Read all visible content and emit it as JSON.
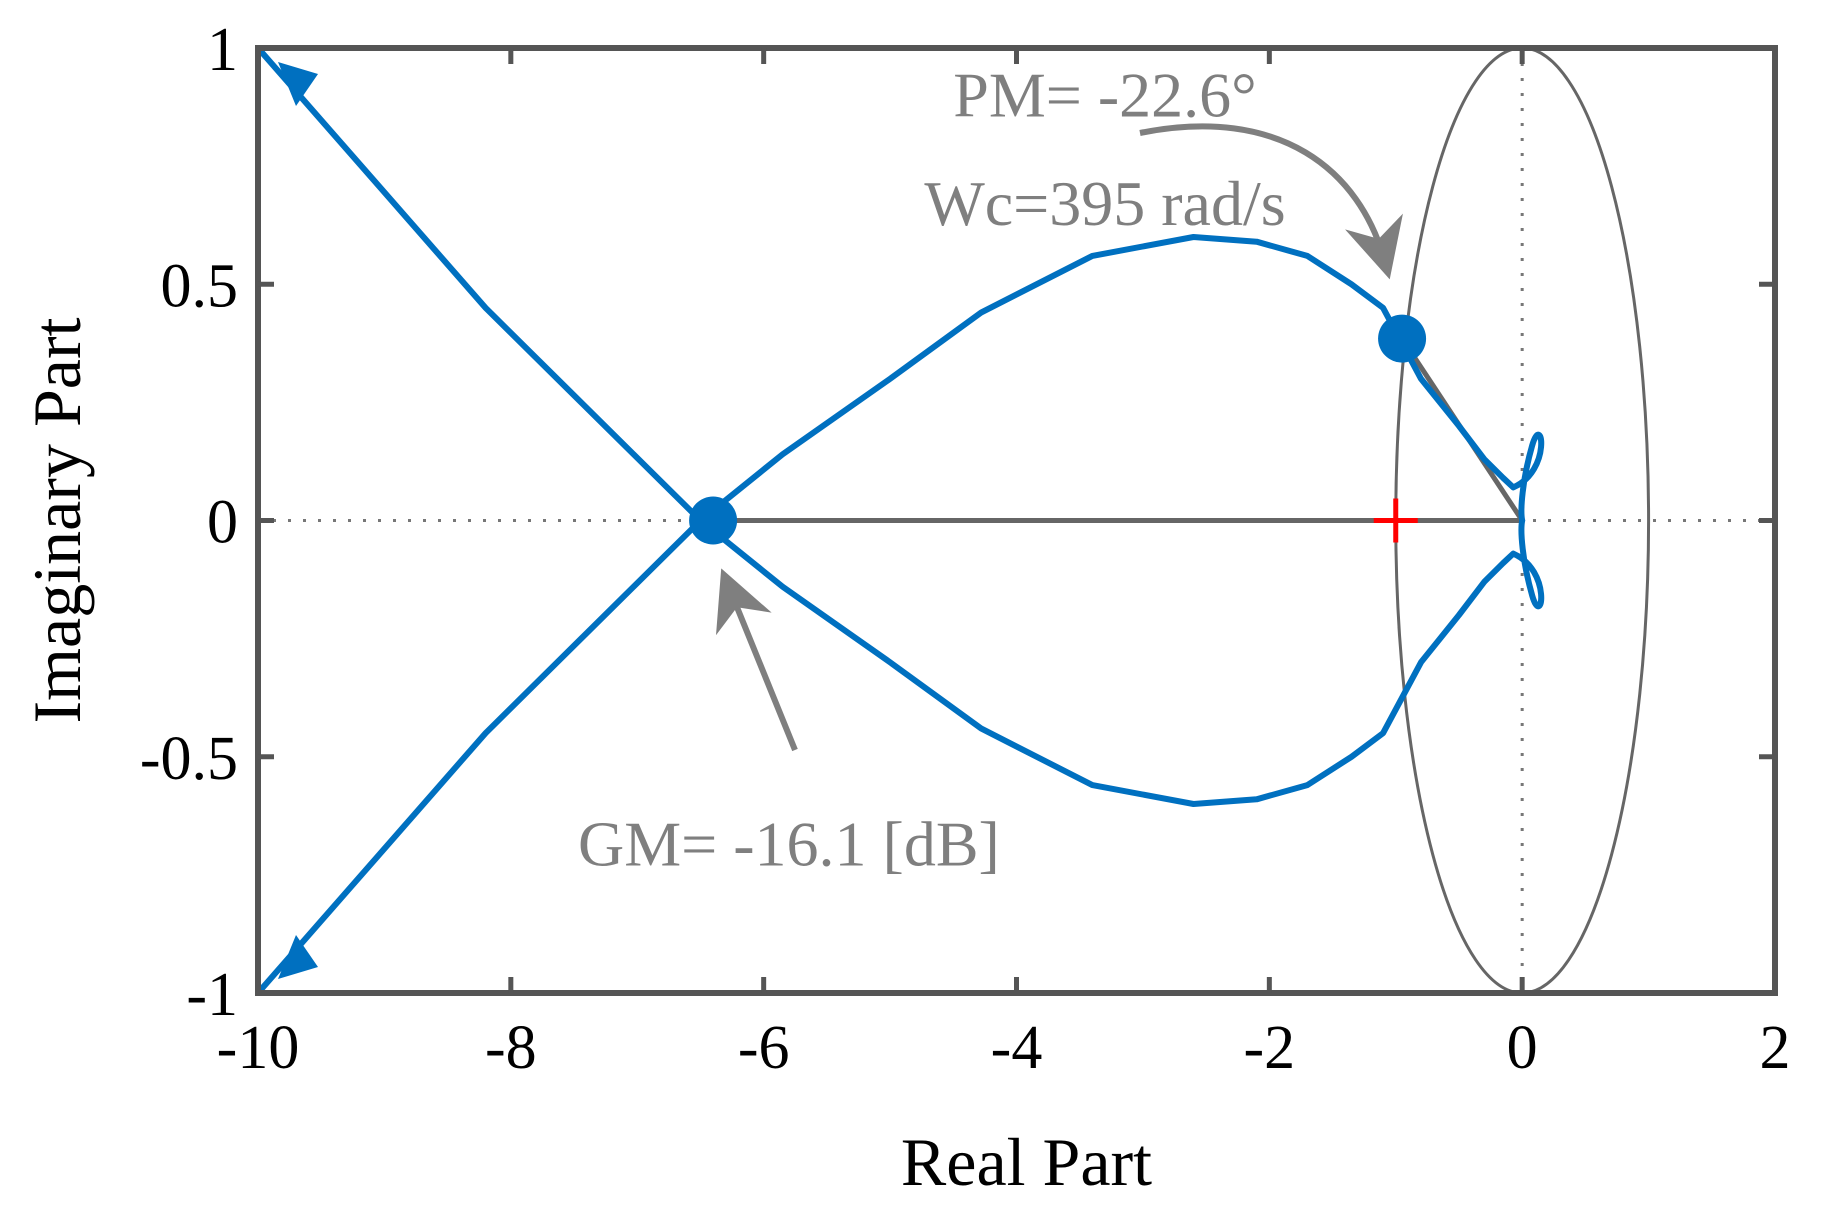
{
  "chart_data": {
    "type": "line",
    "title": "",
    "xlabel": "Real Part",
    "ylabel": "Imaginary Part",
    "xlim": [
      -10,
      2
    ],
    "ylim": [
      -1,
      1
    ],
    "x_ticks": [
      -10,
      -8,
      -6,
      -4,
      -2,
      0,
      2
    ],
    "x_tick_labels": [
      "-10",
      "-8",
      "-6",
      "-4",
      "-2",
      "0",
      "2"
    ],
    "y_ticks": [
      -1,
      -0.5,
      0,
      0.5,
      1
    ],
    "y_tick_labels": [
      "-1",
      "-0.5",
      "0",
      "0.5",
      "1"
    ],
    "grid": false,
    "colors": {
      "nyquist": "#0070c0",
      "annotation": "#7f7f7f",
      "critical_point": "#ff0000",
      "frame": "#555555"
    },
    "series": [
      {
        "x": [
          -10,
          -8.2,
          -6.5,
          -5.85,
          -5.0,
          -4.28,
          -3.4,
          -2.6,
          -2.1,
          -1.7,
          -1.35,
          -1.1,
          -0.8,
          -0.5,
          -0.3,
          -0.15,
          -0.07
        ],
        "y": [
          1.0,
          0.45,
          0.0,
          0.14,
          0.3,
          0.44,
          0.56,
          0.6,
          0.59,
          0.56,
          0.5,
          0.45,
          0.3,
          0.2,
          0.13,
          0.09,
          0.07
        ]
      },
      {
        "x": [
          -10,
          -8.2,
          -6.5,
          -5.85,
          -5.0,
          -4.28,
          -3.4,
          -2.6,
          -2.1,
          -1.7,
          -1.35,
          -1.1,
          -0.8,
          -0.5,
          -0.3,
          -0.15,
          -0.07
        ],
        "y": [
          -1.0,
          -0.45,
          0.0,
          -0.14,
          -0.3,
          -0.44,
          -0.56,
          -0.6,
          -0.59,
          -0.56,
          -0.5,
          -0.45,
          -0.3,
          -0.2,
          -0.13,
          -0.09,
          -0.07
        ]
      }
    ],
    "markers": [
      {
        "x": -6.4,
        "y": 0.0
      },
      {
        "x": -0.95,
        "y": 0.385
      }
    ],
    "critical_point": {
      "x": -1,
      "y": 0
    },
    "annotations": [
      {
        "text": "PM= -22.6°",
        "x": -3.3,
        "y": 0.855
      },
      {
        "text": "Wc=395 rad/s",
        "x": -3.3,
        "y": 0.625
      },
      {
        "text": "GM= -16.1 [dB]",
        "x": -5.8,
        "y": -0.73
      }
    ]
  }
}
